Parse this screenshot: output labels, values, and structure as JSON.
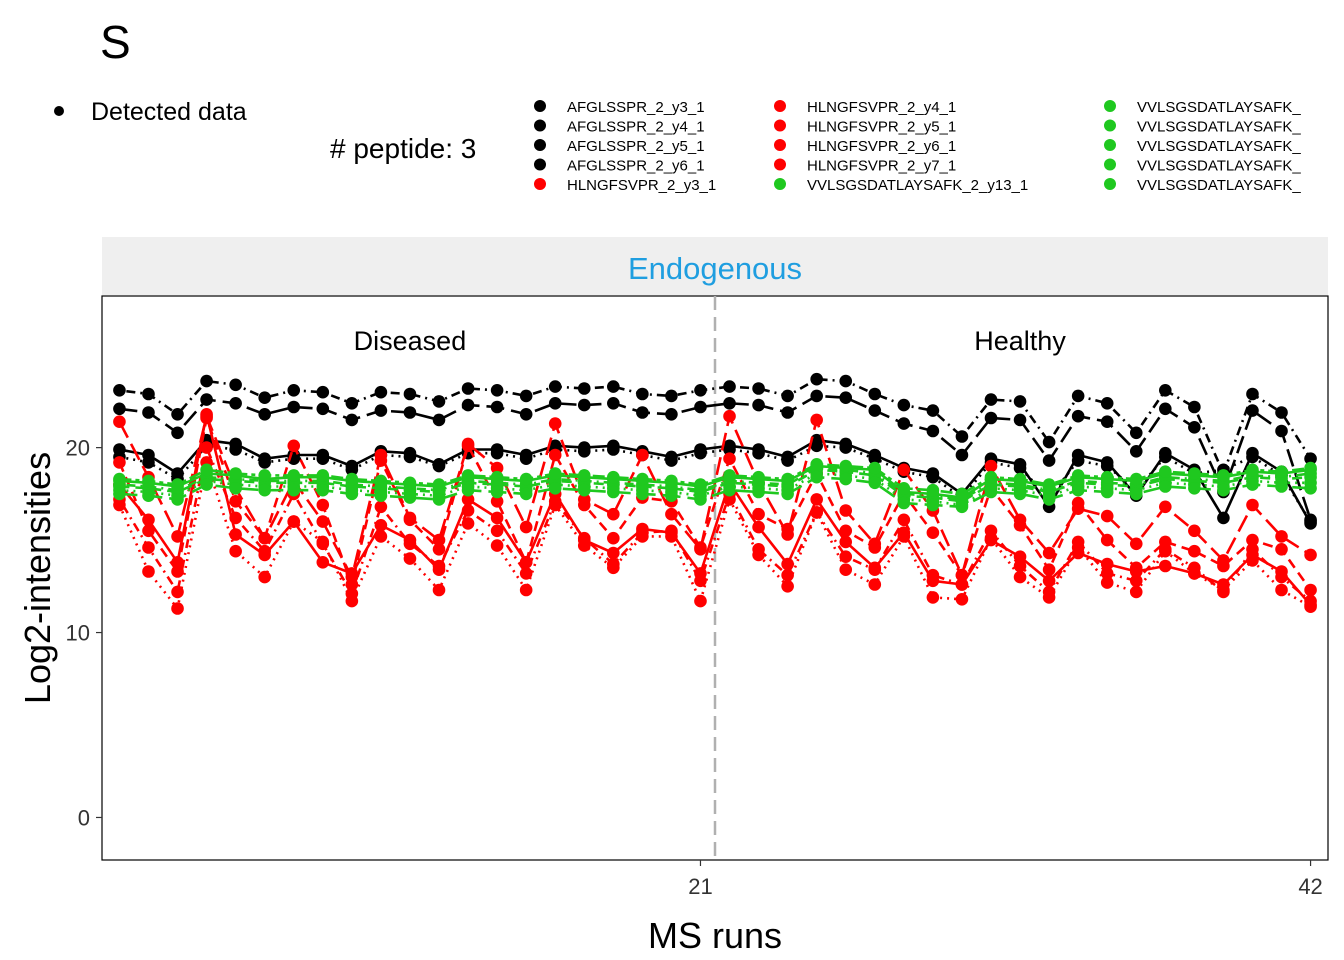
{
  "chart_data": {
    "type": "line",
    "title": "S",
    "xlabel": "MS runs",
    "ylabel": "Log2-intensities",
    "panel_strip": "Endogenous",
    "strip_color": "#1f9ee0",
    "group_labels": [
      "Diseased",
      "Healthy"
    ],
    "group_divider_x": 21.5,
    "xlim": [
      0.4,
      42.6
    ],
    "ylim": [
      -2.3,
      28.2
    ],
    "x_ticks": [
      21,
      42
    ],
    "y_ticks": [
      0,
      10,
      20
    ],
    "peptide_count_label": "# peptide: 3",
    "point_legend_label": "Detected data",
    "grid": false,
    "legend_position": "top",
    "colors": {
      "AFGLSSPR": "#000000",
      "HLNGFSVPR": "#ff0000",
      "VVLSGSDATLAYSAFK": "#1fc81f"
    },
    "legend_entries": [
      {
        "label": "AFGLSSPR_2_y3_1",
        "color": "#000000"
      },
      {
        "label": "AFGLSSPR_2_y4_1",
        "color": "#000000"
      },
      {
        "label": "AFGLSSPR_2_y5_1",
        "color": "#000000"
      },
      {
        "label": "AFGLSSPR_2_y6_1",
        "color": "#000000"
      },
      {
        "label": "HLNGFSVPR_2_y3_1",
        "color": "#ff0000"
      },
      {
        "label": "HLNGFSVPR_2_y4_1",
        "color": "#ff0000"
      },
      {
        "label": "HLNGFSVPR_2_y5_1",
        "color": "#ff0000"
      },
      {
        "label": "HLNGFSVPR_2_y6_1",
        "color": "#ff0000"
      },
      {
        "label": "HLNGFSVPR_2_y7_1",
        "color": "#ff0000"
      },
      {
        "label": "VVLSGSDATLAYSAFK_2_y13_1",
        "color": "#1fc81f"
      },
      {
        "label": "VVLSGSDATLAYSAFK_",
        "color": "#1fc81f"
      },
      {
        "label": "VVLSGSDATLAYSAFK_",
        "color": "#1fc81f"
      },
      {
        "label": "VVLSGSDATLAYSAFK_",
        "color": "#1fc81f"
      },
      {
        "label": "VVLSGSDATLAYSAFK_",
        "color": "#1fc81f"
      },
      {
        "label": "VVLSGSDATLAYSAFK_",
        "color": "#1fc81f"
      }
    ],
    "x": [
      1,
      2,
      3,
      4,
      5,
      6,
      7,
      8,
      9,
      10,
      11,
      12,
      13,
      14,
      15,
      16,
      17,
      18,
      19,
      20,
      21,
      22,
      23,
      24,
      25,
      26,
      27,
      28,
      29,
      30,
      31,
      32,
      33,
      34,
      35,
      36,
      37,
      38,
      39,
      40,
      41,
      42
    ],
    "series": [
      {
        "peptide": "AFGLSSPR",
        "dash": "dotdash",
        "values": [
          23.1,
          22.9,
          21.8,
          23.6,
          23.4,
          22.7,
          23.1,
          23.0,
          22.4,
          23.0,
          22.9,
          22.5,
          23.2,
          23.1,
          22.8,
          23.3,
          23.2,
          23.3,
          22.9,
          22.8,
          23.1,
          23.3,
          23.2,
          22.8,
          23.7,
          23.6,
          22.9,
          22.3,
          22.0,
          20.6,
          22.6,
          22.5,
          20.3,
          22.8,
          22.4,
          20.8,
          23.1,
          22.2,
          18.6,
          22.9,
          21.9,
          19.4
        ]
      },
      {
        "peptide": "AFGLSSPR",
        "dash": "longdash",
        "values": [
          22.1,
          21.9,
          20.8,
          22.6,
          22.4,
          21.8,
          22.2,
          22.1,
          21.5,
          22.0,
          21.9,
          21.5,
          22.3,
          22.2,
          21.8,
          22.4,
          22.3,
          22.4,
          21.9,
          21.8,
          22.2,
          22.4,
          22.3,
          21.9,
          22.8,
          22.7,
          22.0,
          21.3,
          20.9,
          19.6,
          21.6,
          21.5,
          19.3,
          21.7,
          21.4,
          19.8,
          22.1,
          21.1,
          17.6,
          22.0,
          20.9,
          16.1
        ]
      },
      {
        "peptide": "AFGLSSPR",
        "dash": "solid",
        "values": [
          19.9,
          19.6,
          18.6,
          20.4,
          20.2,
          19.4,
          19.6,
          19.6,
          19.0,
          19.8,
          19.7,
          19.1,
          19.9,
          19.9,
          19.6,
          20.1,
          20.0,
          20.1,
          19.8,
          19.5,
          19.9,
          20.1,
          19.9,
          19.5,
          20.4,
          20.2,
          19.6,
          18.9,
          18.6,
          17.5,
          19.4,
          19.1,
          16.8,
          19.6,
          19.2,
          17.4,
          19.7,
          18.8,
          16.2,
          19.7,
          18.7,
          15.9
        ]
      },
      {
        "peptide": "AFGLSSPR",
        "dash": "dotted",
        "values": [
          19.5,
          19.2,
          18.3,
          20.1,
          19.9,
          19.2,
          19.4,
          19.4,
          18.8,
          19.6,
          19.5,
          19.0,
          19.7,
          19.7,
          19.4,
          19.9,
          19.8,
          19.9,
          19.6,
          19.3,
          19.7,
          19.9,
          19.7,
          19.3,
          20.1,
          20.0,
          19.4,
          18.7,
          18.4,
          17.3,
          19.2,
          18.9,
          17.3,
          19.3,
          19.0,
          17.7,
          19.5,
          18.6,
          18.8,
          19.5,
          18.5,
          16.0
        ]
      },
      {
        "peptide": "HLNGFSVPR",
        "dash": "solid",
        "values": [
          18.0,
          16.1,
          13.8,
          21.8,
          15.3,
          14.2,
          16.0,
          13.8,
          13.2,
          15.8,
          15.0,
          13.4,
          17.2,
          16.2,
          13.8,
          17.5,
          15.0,
          14.3,
          15.6,
          15.4,
          13.2,
          18.1,
          15.7,
          13.7,
          17.2,
          14.9,
          13.5,
          15.4,
          12.8,
          12.6,
          15.0,
          14.1,
          12.8,
          14.3,
          13.7,
          13.3,
          13.6,
          13.2,
          12.6,
          14.2,
          13.3,
          11.5
        ]
      },
      {
        "peptide": "HLNGFSVPR",
        "dash": "longdash",
        "values": [
          21.4,
          18.4,
          15.2,
          21.7,
          17.8,
          15.1,
          18.2,
          16.0,
          13.0,
          19.6,
          16.2,
          15.0,
          20.2,
          18.9,
          15.7,
          21.3,
          17.2,
          16.4,
          19.6,
          16.4,
          14.5,
          21.7,
          18.1,
          15.3,
          21.5,
          16.6,
          14.8,
          18.8,
          16.6,
          13.1,
          19.0,
          16.1,
          14.3,
          16.7,
          16.3,
          14.8,
          16.8,
          15.5,
          13.9,
          16.9,
          15.2,
          14.2
        ]
      },
      {
        "peptide": "HLNGFSVPR",
        "dash": "dashed",
        "values": [
          19.2,
          15.5,
          13.3,
          21.6,
          17.1,
          15.1,
          20.1,
          16.9,
          12.6,
          19.3,
          16.1,
          14.5,
          20.1,
          17.1,
          13.8,
          19.6,
          16.9,
          15.1,
          17.3,
          17.1,
          14.6,
          19.4,
          16.4,
          15.6,
          18.6,
          15.5,
          14.6,
          17.5,
          15.4,
          13.1,
          17.8,
          15.8,
          13.4,
          17.0,
          15.0,
          13.5,
          14.9,
          14.4,
          13.6,
          15.0,
          14.5,
          12.3
        ]
      },
      {
        "peptide": "HLNGFSVPR",
        "dash": "dotdash",
        "values": [
          17.2,
          14.6,
          12.2,
          20.0,
          16.2,
          14.4,
          17.5,
          14.8,
          12.1,
          16.8,
          14.8,
          13.6,
          16.6,
          15.5,
          13.2,
          17.1,
          15.1,
          13.7,
          15.4,
          15.5,
          12.8,
          17.5,
          14.5,
          13.1,
          16.5,
          14.1,
          13.4,
          16.1,
          13.1,
          12.6,
          15.5,
          13.6,
          12.2,
          14.9,
          13.2,
          12.8,
          14.5,
          13.5,
          12.2,
          14.5,
          13.0,
          11.7
        ]
      },
      {
        "peptide": "HLNGFSVPR",
        "dash": "dotted",
        "values": [
          16.9,
          13.3,
          11.3,
          19.2,
          14.4,
          13.0,
          16.0,
          14.9,
          11.7,
          15.2,
          14.0,
          12.3,
          15.9,
          14.7,
          12.3,
          16.9,
          14.7,
          13.5,
          15.2,
          15.2,
          11.7,
          17.2,
          14.2,
          12.5,
          16.5,
          13.4,
          12.6,
          15.2,
          11.9,
          11.8,
          15.1,
          13.0,
          11.9,
          14.6,
          12.7,
          12.2,
          14.4,
          13.2,
          12.3,
          13.9,
          12.3,
          11.4
        ]
      },
      {
        "peptide": "VVLSGSDATLAYSAFK",
        "dash": "solid",
        "values": [
          18.2,
          18.1,
          17.9,
          18.6,
          18.5,
          18.3,
          18.4,
          18.4,
          18.2,
          18.1,
          18.0,
          17.9,
          18.4,
          18.3,
          18.2,
          18.5,
          18.4,
          18.3,
          18.2,
          18.1,
          17.9,
          18.4,
          18.3,
          18.2,
          19.0,
          18.9,
          18.8,
          17.6,
          17.5,
          17.3,
          18.3,
          18.2,
          17.9,
          18.4,
          18.3,
          18.2,
          18.6,
          18.5,
          18.4,
          18.7,
          18.6,
          18.8
        ]
      },
      {
        "peptide": "VVLSGSDATLAYSAFK",
        "dash": "dashed",
        "values": [
          17.9,
          17.8,
          17.6,
          18.3,
          18.2,
          18.1,
          18.1,
          18.1,
          17.9,
          17.8,
          17.7,
          17.6,
          18.1,
          18.0,
          17.9,
          18.2,
          18.1,
          18.0,
          17.9,
          17.8,
          17.6,
          18.1,
          18.0,
          17.9,
          18.8,
          18.7,
          18.5,
          17.4,
          17.3,
          17.1,
          18.0,
          17.9,
          17.6,
          18.1,
          18.0,
          17.9,
          18.3,
          18.2,
          18.1,
          18.4,
          18.3,
          18.4
        ]
      },
      {
        "peptide": "VVLSGSDATLAYSAFK",
        "dash": "dotted",
        "values": [
          17.7,
          17.6,
          17.4,
          18.2,
          18.0,
          17.9,
          17.9,
          17.9,
          17.7,
          17.6,
          17.5,
          17.4,
          17.9,
          17.8,
          17.7,
          18.0,
          17.9,
          17.8,
          17.7,
          17.6,
          17.4,
          17.9,
          17.8,
          17.7,
          18.6,
          18.5,
          18.3,
          17.2,
          17.1,
          16.9,
          17.8,
          17.7,
          17.4,
          17.9,
          17.8,
          17.7,
          18.1,
          18.0,
          17.9,
          18.2,
          18.1,
          18.1
        ]
      },
      {
        "peptide": "VVLSGSDATLAYSAFK",
        "dash": "dotdash",
        "values": [
          18.0,
          17.9,
          17.7,
          18.4,
          18.3,
          18.2,
          18.2,
          18.2,
          18.0,
          17.9,
          17.8,
          17.7,
          18.2,
          18.1,
          18.0,
          18.3,
          18.2,
          18.1,
          18.0,
          17.9,
          17.7,
          18.2,
          18.1,
          18.0,
          18.9,
          18.8,
          18.6,
          17.5,
          17.4,
          17.2,
          18.1,
          18.0,
          17.7,
          18.2,
          18.1,
          18.0,
          18.4,
          18.3,
          18.2,
          18.5,
          18.4,
          18.6
        ]
      },
      {
        "peptide": "VVLSGSDATLAYSAFK",
        "dash": "longdash",
        "values": [
          17.5,
          17.4,
          17.2,
          18.0,
          17.8,
          17.7,
          17.7,
          17.7,
          17.5,
          17.4,
          17.3,
          17.2,
          17.7,
          17.6,
          17.5,
          17.8,
          17.7,
          17.6,
          17.5,
          17.4,
          17.2,
          17.7,
          17.6,
          17.5,
          18.4,
          18.3,
          18.1,
          17.0,
          16.9,
          16.8,
          17.6,
          17.5,
          17.2,
          17.7,
          17.6,
          17.5,
          17.9,
          17.8,
          17.7,
          18.0,
          17.9,
          17.8
        ]
      },
      {
        "peptide": "VVLSGSDATLAYSAFK",
        "dash": "twodash",
        "values": [
          18.3,
          18.2,
          18.0,
          18.8,
          18.6,
          18.5,
          18.5,
          18.5,
          18.3,
          18.2,
          18.1,
          18.0,
          18.5,
          18.4,
          18.3,
          18.6,
          18.5,
          18.4,
          18.3,
          18.2,
          18.0,
          18.5,
          18.4,
          18.3,
          19.1,
          19.0,
          18.9,
          17.8,
          17.7,
          17.5,
          18.4,
          18.3,
          18.0,
          18.5,
          18.4,
          18.3,
          18.7,
          18.6,
          18.5,
          18.8,
          18.7,
          18.9
        ]
      }
    ]
  }
}
